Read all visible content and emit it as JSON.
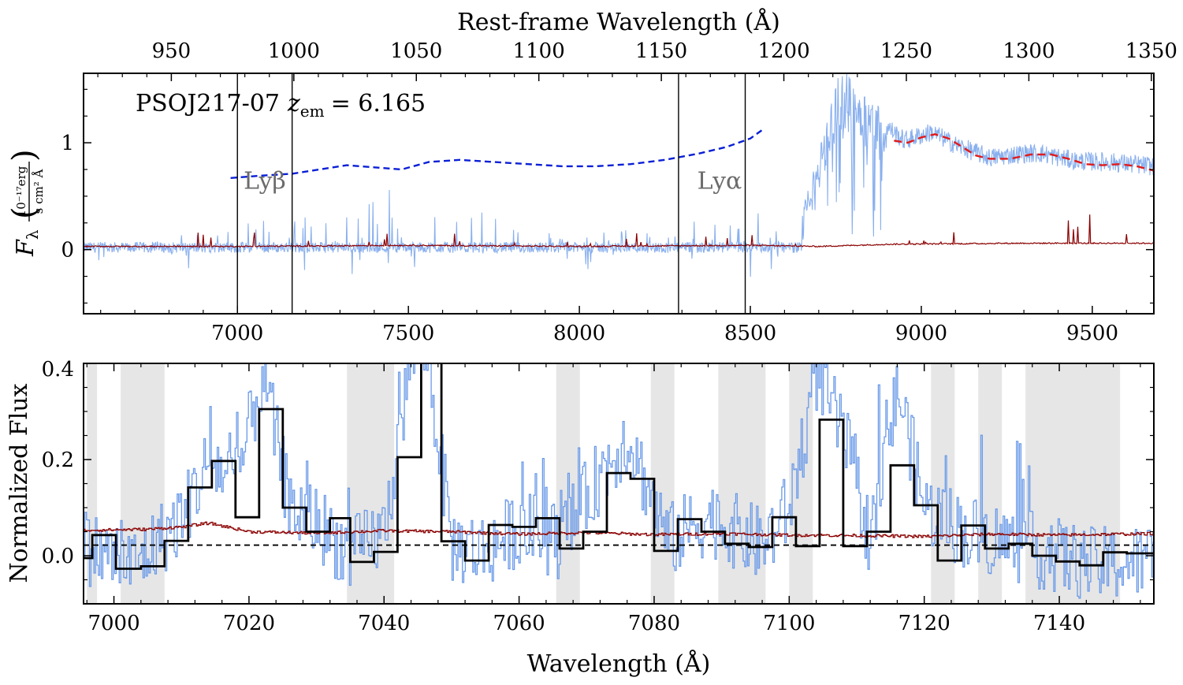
{
  "chart_data": [
    {
      "type": "line",
      "panel": "top",
      "title": "",
      "annotation": "PSOJ217-07",
      "annotation_math_lhs": "z",
      "annotation_math_sub": "em",
      "annotation_math_rhs": "= 6.165",
      "xlabel": "",
      "ylabel_symbol": "F",
      "ylabel_sub": "λ",
      "ylabel_units_num": "10⁻¹⁷erg",
      "ylabel_units_den": "s cm² Å",
      "top_xlabel": "Rest-frame Wavelength (Å)",
      "xlim": [
        6550,
        9680
      ],
      "ylim": [
        -0.6,
        1.65
      ],
      "x_ticks": [
        7000,
        7500,
        8000,
        8500,
        9000,
        9500
      ],
      "x_tick_labels": [
        "7000",
        "7500",
        "8000",
        "8500",
        "9000",
        "9500"
      ],
      "y_ticks": [
        0,
        1
      ],
      "y_tick_labels": [
        "0",
        "1"
      ],
      "top_ticks": [
        950,
        1000,
        1050,
        1100,
        1150,
        1200,
        1250,
        1300,
        1350
      ],
      "top_tick_labels": [
        "950",
        "1000",
        "1050",
        "1100",
        "1150",
        "1200",
        "1250",
        "1300",
        "1350"
      ],
      "redshift": 6.165,
      "vertical_lines": [
        7000,
        7160,
        8290,
        8485
      ],
      "line_labels": [
        {
          "text": "Lyβ",
          "x": 7080,
          "y": 0.57
        },
        {
          "text": "Lyα",
          "x": 8410,
          "y": 0.57
        }
      ],
      "series": [
        {
          "name": "",
          "color": "#8ab0ee",
          "kind": "noisy_flux",
          "envelope_x": [
            6550,
            6900,
            7000,
            7160,
            7300,
            7480,
            7500,
            7620,
            7800,
            8000,
            8290,
            8500,
            8650,
            8720,
            8760,
            8820,
            8900,
            8950,
            9030,
            9100,
            9200,
            9300,
            9350,
            9450,
            9550,
            9680
          ],
          "envelope_y": [
            0.03,
            0.05,
            0.12,
            0.15,
            0.12,
            0.3,
            0.2,
            0.2,
            0.08,
            0.05,
            0.08,
            0.12,
            0.3,
            1.0,
            1.5,
            1.35,
            1.15,
            1.02,
            1.1,
            0.98,
            0.86,
            0.9,
            0.9,
            0.83,
            0.82,
            0.78
          ]
        },
        {
          "name": "",
          "color": "#8b0000",
          "kind": "error",
          "x": [
            6550,
            7000,
            7500,
            8000,
            8500,
            8700,
            8900,
            9300,
            9680
          ],
          "y": [
            0.03,
            0.03,
            0.04,
            0.03,
            0.04,
            0.03,
            0.05,
            0.06,
            0.06
          ]
        },
        {
          "name": "",
          "color": "#0a1fd6",
          "kind": "continuum_blue",
          "dash": "8,5",
          "x": [
            6980,
            7060,
            7160,
            7240,
            7320,
            7400,
            7480,
            7560,
            7650,
            7750,
            7850,
            7950,
            8050,
            8150,
            8250,
            8350,
            8430,
            8500,
            8535
          ],
          "y": [
            0.67,
            0.69,
            0.71,
            0.75,
            0.79,
            0.77,
            0.75,
            0.82,
            0.84,
            0.82,
            0.8,
            0.78,
            0.78,
            0.8,
            0.84,
            0.9,
            0.96,
            1.04,
            1.12
          ]
        },
        {
          "name": "",
          "color": "#e01b1b",
          "kind": "continuum_red",
          "dash": "10,6",
          "x": [
            8920,
            8960,
            9000,
            9040,
            9080,
            9120,
            9160,
            9200,
            9260,
            9320,
            9380,
            9430,
            9480,
            9530,
            9580,
            9630,
            9680
          ],
          "y": [
            1.02,
            1.0,
            1.05,
            1.08,
            1.04,
            0.96,
            0.88,
            0.85,
            0.85,
            0.89,
            0.89,
            0.85,
            0.8,
            0.79,
            0.8,
            0.78,
            0.74
          ]
        }
      ]
    },
    {
      "type": "line",
      "panel": "bottom",
      "title": "",
      "xlabel": "Wavelength (Å)",
      "ylabel": "Normalized Flux",
      "xlim": [
        6995.5,
        7154
      ],
      "ylim": [
        -0.1,
        0.4
      ],
      "x_ticks": [
        7000,
        7020,
        7040,
        7060,
        7080,
        7100,
        7120,
        7140
      ],
      "x_tick_labels": [
        "7000",
        "7020",
        "7040",
        "7060",
        "7080",
        "7100",
        "7120",
        "7140"
      ],
      "y_ticks": [
        0.0,
        0.2,
        0.4
      ],
      "y_tick_labels": [
        "0.0",
        "0.2",
        "0.4"
      ],
      "zero_level": 0.022,
      "shaded_regions": [
        [
          6996,
          6997.5
        ],
        [
          7001,
          7007.5
        ],
        [
          7034.5,
          7041.5
        ],
        [
          7065.5,
          7069
        ],
        [
          7079.5,
          7083
        ],
        [
          7089.5,
          7096.5
        ],
        [
          7100,
          7103.5
        ],
        [
          7121,
          7124.5
        ],
        [
          7128,
          7131.5
        ],
        [
          7135,
          7149
        ]
      ],
      "series": [
        {
          "name": "",
          "color": "#6a9ae8",
          "kind": "high_res_flux",
          "envelope_x": [
            6995.5,
            7003,
            7010,
            7014,
            7018,
            7022,
            7026,
            7030,
            7035,
            7040,
            7044,
            7046,
            7050,
            7055,
            7060,
            7066,
            7072,
            7076,
            7082,
            7088,
            7096,
            7100,
            7104,
            7108,
            7112,
            7116,
            7120,
            7126,
            7134,
            7145,
            7154
          ],
          "envelope_y": [
            0.02,
            -0.02,
            0.08,
            0.2,
            0.15,
            0.38,
            0.1,
            0.07,
            0.0,
            0.05,
            0.42,
            0.45,
            0.02,
            0.01,
            0.06,
            0.03,
            0.17,
            0.25,
            0.03,
            0.08,
            0.02,
            0.1,
            0.38,
            0.25,
            0.03,
            0.35,
            0.1,
            0.05,
            0.02,
            -0.02,
            -0.01
          ]
        },
        {
          "name": "",
          "color": "#000000",
          "kind": "binned_step",
          "edges": [
            6995.5,
            6996.8,
            7000.3,
            7004.0,
            7007.5,
            7011.0,
            7014.5,
            7018.0,
            7021.5,
            7025.0,
            7028.5,
            7032.0,
            7035.0,
            7038.5,
            7042.0,
            7045.5,
            7048.5,
            7052.0,
            7055.5,
            7059.0,
            7062.5,
            7066.0,
            7069.5,
            7073.0,
            7076.5,
            7080.0,
            7083.5,
            7087.0,
            7090.5,
            7094.0,
            7097.5,
            7101.0,
            7104.5,
            7108.0,
            7111.5,
            7115.0,
            7118.5,
            7122.0,
            7125.5,
            7129.0,
            7132.5,
            7136.0,
            7139.5,
            7143.0,
            7146.5,
            7150.0,
            7154.0
          ],
          "values": [
            -0.005,
            0.043,
            -0.027,
            -0.022,
            0.031,
            0.142,
            0.197,
            0.08,
            0.305,
            0.1,
            0.05,
            0.078,
            -0.013,
            0.008,
            0.205,
            0.41,
            0.03,
            -0.01,
            0.064,
            0.06,
            0.078,
            0.015,
            0.05,
            0.172,
            0.16,
            0.01,
            0.076,
            0.05,
            0.025,
            0.018,
            0.08,
            0.02,
            0.283,
            0.02,
            0.05,
            0.188,
            0.105,
            -0.01,
            0.063,
            0.015,
            0.025,
            0.0,
            -0.012,
            -0.02,
            0.007,
            0.005,
            0.007
          ]
        },
        {
          "name": "",
          "color": "#8b0000",
          "kind": "error",
          "x": [
            6995.5,
            7005,
            7010,
            7014,
            7020,
            7030,
            7040,
            7050,
            7060,
            7070,
            7080,
            7090,
            7100,
            7110,
            7120,
            7130,
            7140,
            7154
          ],
          "y": [
            0.053,
            0.055,
            0.06,
            0.068,
            0.05,
            0.047,
            0.052,
            0.05,
            0.045,
            0.048,
            0.044,
            0.046,
            0.043,
            0.042,
            0.04,
            0.045,
            0.043,
            0.046
          ]
        }
      ]
    }
  ]
}
